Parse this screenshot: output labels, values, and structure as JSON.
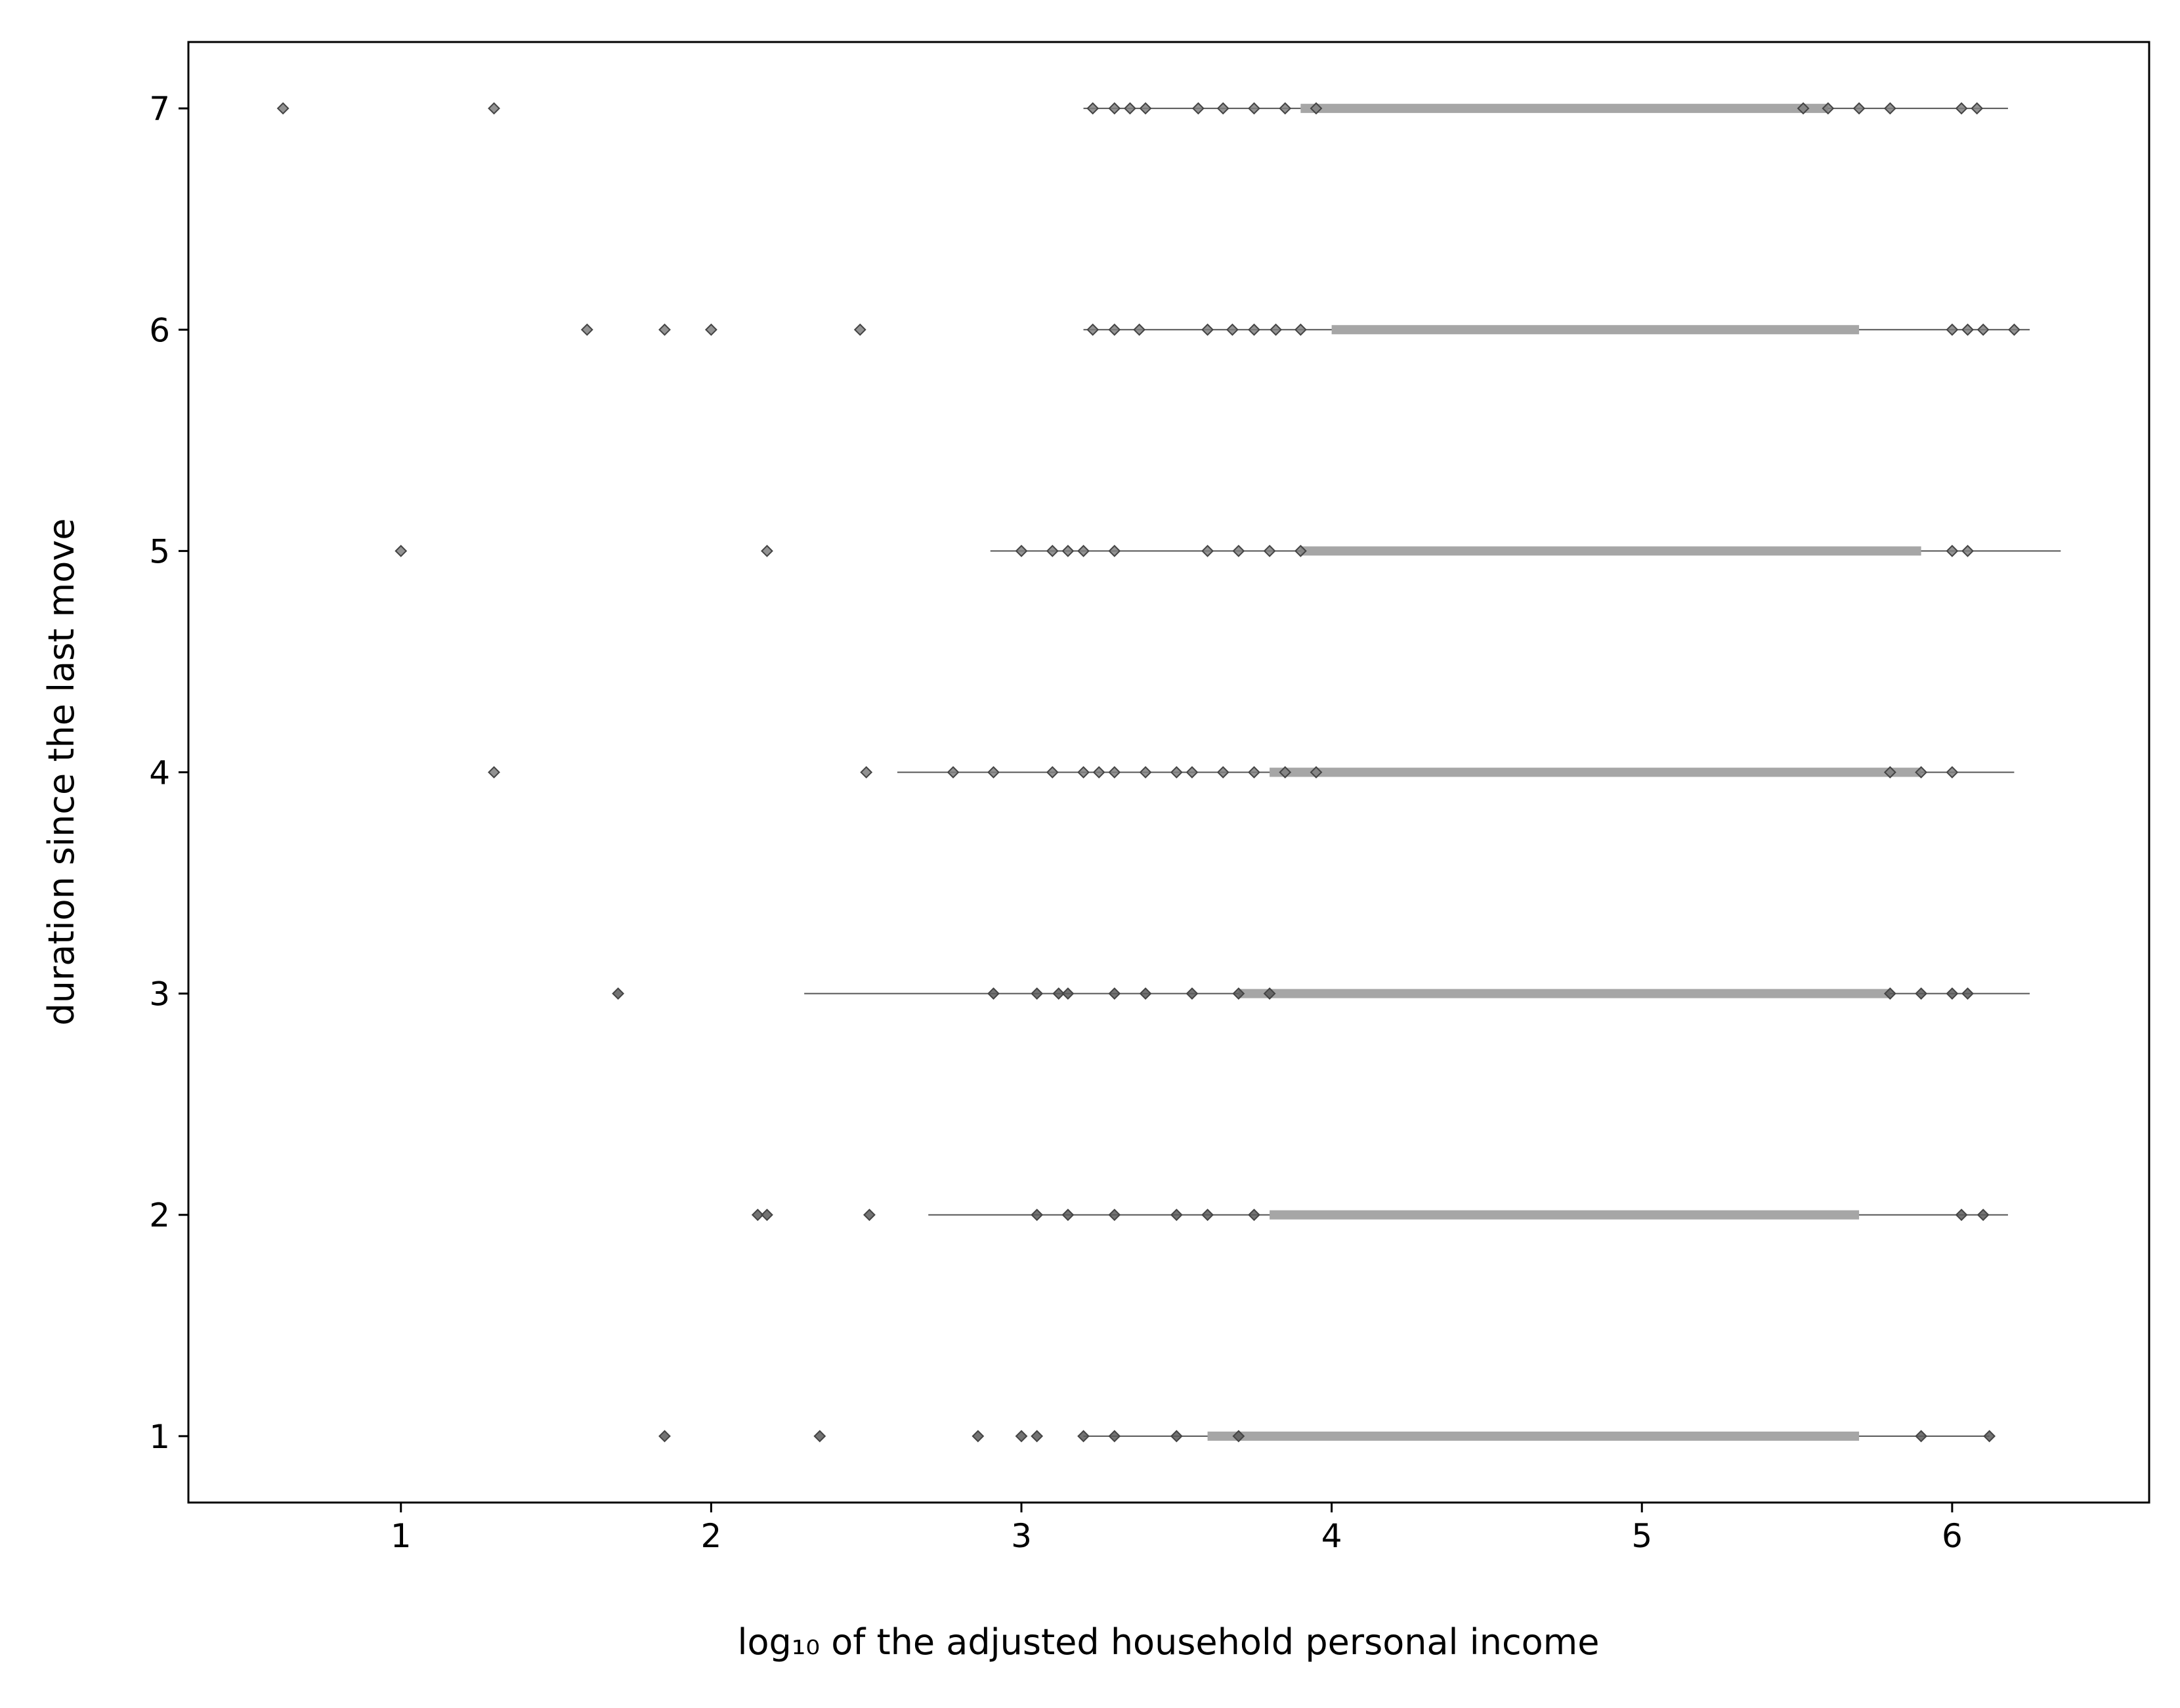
{
  "chart_data": {
    "type": "scatter",
    "xlabel": "log₁₀ of the adjusted household personal income",
    "ylabel": "duration since the last move",
    "xlim": [
      0.315,
      6.635
    ],
    "ylim": [
      0.7,
      7.3
    ],
    "xticks": [
      1,
      2,
      3,
      4,
      5,
      6
    ],
    "yticks": [
      1,
      2,
      3,
      4,
      5,
      6,
      7
    ],
    "series": [
      {
        "marker": "line",
        "color": "#555555",
        "linewidth": 2,
        "x": [
          3.2,
          6.18,
          null,
          3.2,
          6.25,
          null,
          2.9,
          6.35,
          null,
          2.6,
          6.2,
          null,
          2.3,
          6.25,
          null,
          2.7,
          6.18,
          null,
          3.2,
          6.12
        ],
        "values": [
          7,
          7,
          null,
          6,
          6,
          null,
          5,
          5,
          null,
          4,
          4,
          null,
          3,
          3,
          null,
          2,
          2,
          null,
          1,
          1
        ]
      },
      {
        "marker": "line",
        "color": "#a6a6a6",
        "linewidth": 14,
        "x": [
          3.9,
          5.6,
          null,
          4.0,
          5.7,
          null,
          3.9,
          5.9,
          null,
          3.8,
          5.9,
          null,
          3.7,
          5.8,
          null,
          3.8,
          5.7,
          null,
          3.6,
          5.7
        ],
        "values": [
          7,
          7,
          null,
          6,
          6,
          null,
          5,
          5,
          null,
          4,
          4,
          null,
          3,
          3,
          null,
          2,
          2,
          null,
          1,
          1
        ]
      },
      {
        "marker": "diamond",
        "color": "#7f7f7f",
        "x": [
          0.62,
          1.3,
          3.23,
          3.3,
          3.35,
          3.4,
          3.57,
          3.65,
          3.75,
          3.85,
          3.95,
          5.52,
          5.6,
          5.7,
          5.8,
          6.03,
          6.08
        ],
        "values": [
          7,
          7,
          7,
          7,
          7,
          7,
          7,
          7,
          7,
          7,
          7,
          7,
          7,
          7,
          7,
          7,
          7
        ]
      },
      {
        "marker": "diamond",
        "color": "#7f7f7f",
        "x": [
          1.6,
          1.85,
          2.0,
          2.48,
          3.23,
          3.3,
          3.38,
          3.6,
          3.68,
          3.75,
          3.82,
          3.9,
          6.0,
          6.05,
          6.1,
          6.2
        ],
        "values": [
          6,
          6,
          6,
          6,
          6,
          6,
          6,
          6,
          6,
          6,
          6,
          6,
          6,
          6,
          6,
          6
        ]
      },
      {
        "marker": "diamond",
        "color": "#7f7f7f",
        "x": [
          1.0,
          2.18,
          3.0,
          3.1,
          3.15,
          3.2,
          3.3,
          3.6,
          3.7,
          3.8,
          3.9,
          6.0,
          6.05
        ],
        "values": [
          5,
          5,
          5,
          5,
          5,
          5,
          5,
          5,
          5,
          5,
          5,
          5,
          5
        ]
      },
      {
        "marker": "diamond",
        "color": "#7f7f7f",
        "x": [
          1.3,
          2.5,
          2.78,
          2.91,
          3.1,
          3.2,
          3.25,
          3.3,
          3.4,
          3.5,
          3.55,
          3.65,
          3.75,
          3.85,
          3.95,
          5.8,
          5.9,
          6.0
        ],
        "values": [
          4,
          4,
          4,
          4,
          4,
          4,
          4,
          4,
          4,
          4,
          4,
          4,
          4,
          4,
          4,
          4,
          4,
          4
        ]
      },
      {
        "marker": "diamond",
        "color": "#5a5a5a",
        "x": [
          1.7,
          2.91,
          3.05,
          3.12,
          3.15,
          3.3,
          3.4,
          3.55,
          3.7,
          3.8,
          5.8,
          5.9,
          6.0,
          6.05
        ],
        "values": [
          3,
          3,
          3,
          3,
          3,
          3,
          3,
          3,
          3,
          3,
          3,
          3,
          3,
          3
        ]
      },
      {
        "marker": "diamond",
        "color": "#5a5a5a",
        "x": [
          2.15,
          2.18,
          2.51,
          3.05,
          3.15,
          3.3,
          3.5,
          3.6,
          3.75,
          6.03,
          6.1
        ],
        "values": [
          2,
          2,
          2,
          2,
          2,
          2,
          2,
          2,
          2,
          2,
          2
        ]
      },
      {
        "marker": "diamond",
        "color": "#5a5a5a",
        "x": [
          1.85,
          2.35,
          2.86,
          3.0,
          3.05,
          3.2,
          3.3,
          3.5,
          3.7,
          5.9,
          6.12
        ],
        "values": [
          1,
          1,
          1,
          1,
          1,
          1,
          1,
          1,
          1,
          1,
          1
        ]
      }
    ]
  }
}
